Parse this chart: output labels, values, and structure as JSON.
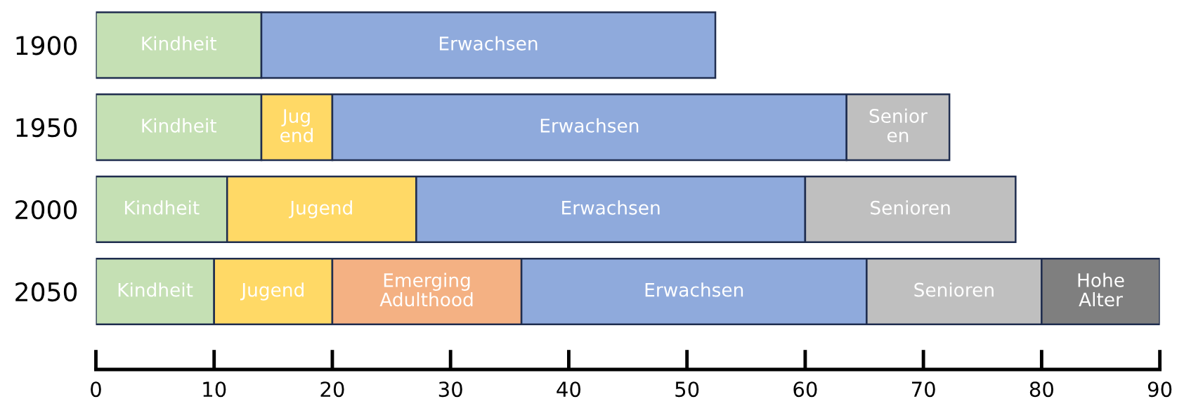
{
  "chart_data": {
    "type": "bar",
    "orientation": "horizontal",
    "stacked": true,
    "categories": [
      "1900",
      "1950",
      "2000",
      "2050"
    ],
    "series": [
      {
        "color": "#c5e0b4",
        "values": [
          14,
          14,
          11.1,
          10
        ],
        "value_labels": [
          "Kindheit",
          "Kindheit",
          "Kindheit",
          "Kindheit"
        ]
      },
      {
        "color": "#ffd966",
        "values": [
          null,
          6,
          16,
          10
        ],
        "value_labels": [
          null,
          "Jug\nend",
          "Jugend",
          "Jugend"
        ]
      },
      {
        "color": "#f4b183",
        "values": [
          null,
          null,
          null,
          16
        ],
        "value_labels": [
          null,
          null,
          null,
          "Emerging\nAdulthood"
        ]
      },
      {
        "color": "#8faadc",
        "values": [
          38.4,
          43.5,
          32.9,
          29.2
        ],
        "value_labels": [
          "Erwachsen",
          "Erwachsen",
          "Erwachsen",
          "Erwachsen"
        ]
      },
      {
        "color": "#bfbfbf",
        "values": [
          null,
          8.7,
          17.8,
          14.8
        ],
        "value_labels": [
          null,
          "Senior\nen",
          "Senioren",
          "Senioren"
        ]
      },
      {
        "color": "#7f7f7f",
        "values": [
          null,
          null,
          null,
          10
        ],
        "value_labels": [
          null,
          null,
          null,
          "Hohe\nAlter"
        ]
      }
    ],
    "xlim": [
      0,
      90
    ],
    "xticks": [
      0,
      10,
      20,
      30,
      40,
      50,
      60,
      70,
      80,
      90
    ],
    "grid": false
  }
}
